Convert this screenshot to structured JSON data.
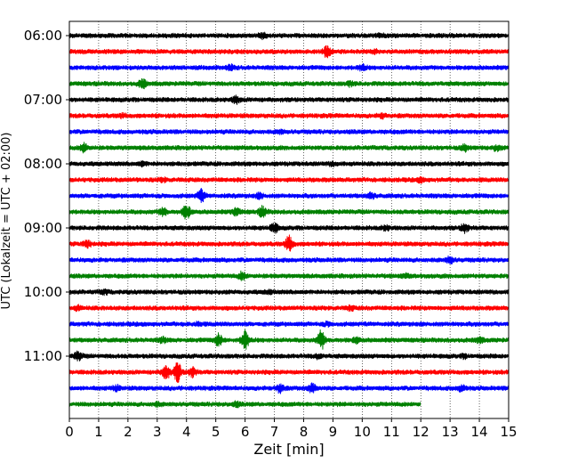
{
  "chart_data": {
    "type": "line",
    "subtype": "seismogram-helicorder",
    "xlabel": "Zeit  [min]",
    "ylabel": "UTC (Lokalzeit = UTC + 02:00)",
    "xlim": [
      0,
      15
    ],
    "x_ticks": [
      "0",
      "1",
      "2",
      "3",
      "4",
      "5",
      "6",
      "7",
      "8",
      "9",
      "10",
      "11",
      "12",
      "13",
      "14",
      "15"
    ],
    "y_tick_labels": [
      "06:00",
      "07:00",
      "08:00",
      "09:00",
      "10:00",
      "11:00"
    ],
    "grid": "vertical-dotted",
    "colors": [
      "#000000",
      "#ff0000",
      "#0000ff",
      "#008000"
    ],
    "line_minutes": 15,
    "series": [
      {
        "start": "06:00",
        "color": "#000000",
        "events": [
          [
            6.6,
            0.5
          ],
          [
            10.6,
            0.3
          ]
        ]
      },
      {
        "start": "06:15",
        "color": "#ff0000",
        "events": [
          [
            8.8,
            1.2
          ],
          [
            10.4,
            0.3
          ]
        ]
      },
      {
        "start": "06:30",
        "color": "#0000ff",
        "events": [
          [
            5.5,
            0.6
          ],
          [
            10.0,
            0.6
          ]
        ]
      },
      {
        "start": "06:45",
        "color": "#008000",
        "events": [
          [
            2.5,
            0.9
          ],
          [
            9.6,
            0.4
          ]
        ]
      },
      {
        "start": "07:00",
        "color": "#000000",
        "events": [
          [
            5.7,
            0.7
          ]
        ]
      },
      {
        "start": "07:15",
        "color": "#ff0000",
        "events": [
          [
            1.8,
            0.3
          ],
          [
            10.7,
            0.4
          ]
        ]
      },
      {
        "start": "07:30",
        "color": "#0000ff",
        "events": [
          [
            7.2,
            0.3
          ]
        ]
      },
      {
        "start": "07:45",
        "color": "#008000",
        "events": [
          [
            0.5,
            0.9
          ],
          [
            13.5,
            0.6
          ],
          [
            14.6,
            0.5
          ]
        ]
      },
      {
        "start": "08:00",
        "color": "#000000",
        "events": [
          [
            2.5,
            0.4
          ],
          [
            9.0,
            0.3
          ]
        ]
      },
      {
        "start": "08:15",
        "color": "#ff0000",
        "events": [
          [
            3.2,
            0.3
          ],
          [
            12.0,
            0.4
          ]
        ]
      },
      {
        "start": "08:30",
        "color": "#0000ff",
        "events": [
          [
            4.5,
            1.3
          ],
          [
            6.5,
            0.5
          ],
          [
            10.3,
            0.6
          ]
        ]
      },
      {
        "start": "08:45",
        "color": "#008000",
        "events": [
          [
            3.2,
            0.8
          ],
          [
            4.0,
            1.6
          ],
          [
            5.7,
            0.8
          ],
          [
            6.6,
            1.1
          ]
        ]
      },
      {
        "start": "09:00",
        "color": "#000000",
        "events": [
          [
            7.0,
            1.0
          ],
          [
            10.8,
            0.4
          ],
          [
            13.5,
            0.9
          ]
        ]
      },
      {
        "start": "09:15",
        "color": "#ff0000",
        "events": [
          [
            0.6,
            0.8
          ],
          [
            7.5,
            1.7
          ]
        ]
      },
      {
        "start": "09:30",
        "color": "#0000ff",
        "events": [
          [
            13.0,
            0.7
          ]
        ]
      },
      {
        "start": "09:45",
        "color": "#008000",
        "events": [
          [
            5.9,
            0.8
          ],
          [
            11.5,
            0.3
          ]
        ]
      },
      {
        "start": "10:00",
        "color": "#000000",
        "events": [
          [
            1.2,
            0.4
          ],
          [
            6.8,
            0.3
          ]
        ]
      },
      {
        "start": "10:15",
        "color": "#ff0000",
        "events": [
          [
            0.3,
            0.4
          ],
          [
            9.6,
            0.4
          ]
        ]
      },
      {
        "start": "10:30",
        "color": "#0000ff",
        "events": [
          [
            4.4,
            0.3
          ],
          [
            8.8,
            0.3
          ]
        ]
      },
      {
        "start": "10:45",
        "color": "#008000",
        "events": [
          [
            3.2,
            0.5
          ],
          [
            5.1,
            1.3
          ],
          [
            6.0,
            2.2
          ],
          [
            8.6,
            2.0
          ],
          [
            9.8,
            0.5
          ],
          [
            14.0,
            0.5
          ]
        ]
      },
      {
        "start": "11:00",
        "color": "#000000",
        "events": [
          [
            0.3,
            0.9
          ],
          [
            8.5,
            0.4
          ],
          [
            13.5,
            0.3
          ]
        ]
      },
      {
        "start": "11:15",
        "color": "#ff0000",
        "events": [
          [
            3.3,
            1.6
          ],
          [
            3.7,
            2.2
          ],
          [
            4.2,
            1.0
          ]
        ]
      },
      {
        "start": "11:30",
        "color": "#0000ff",
        "events": [
          [
            1.6,
            0.5
          ],
          [
            7.2,
            0.9
          ],
          [
            8.3,
            1.0
          ],
          [
            13.4,
            0.7
          ]
        ]
      },
      {
        "start": "11:45",
        "color": "#008000",
        "events": [
          [
            3.0,
            0.3
          ],
          [
            5.7,
            0.4
          ]
        ],
        "end_minute": 12
      }
    ]
  }
}
